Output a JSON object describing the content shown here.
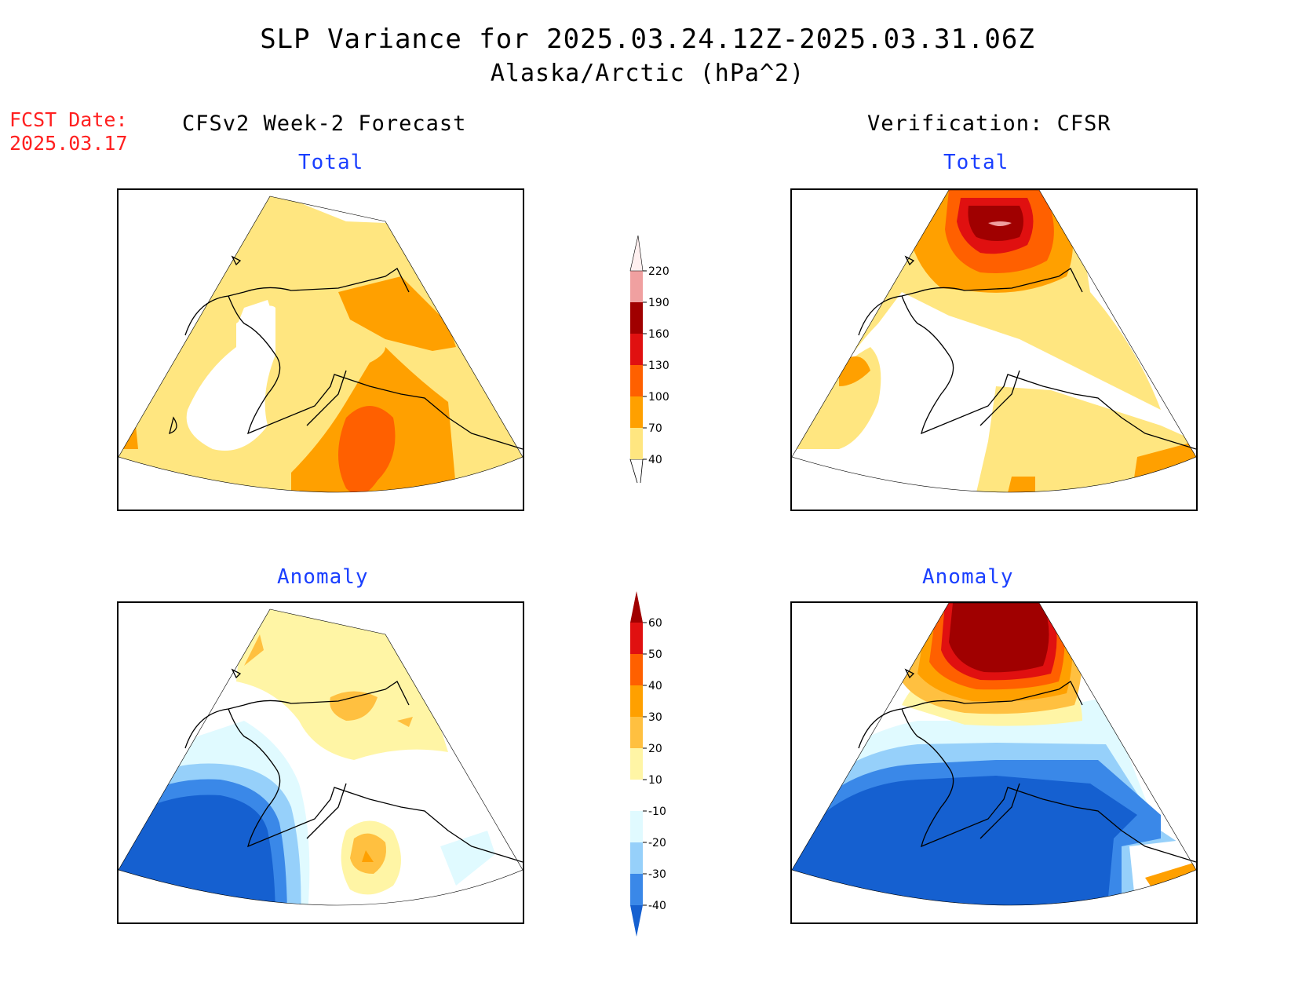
{
  "title": {
    "line1": "SLP Variance for 2025.03.24.12Z-2025.03.31.06Z",
    "line2": "Alaska/Arctic (hPa^2)"
  },
  "forecast_date": {
    "label": "FCST Date:",
    "value": "2025.03.17",
    "color": "#ff2020"
  },
  "columns": {
    "left": "CFSv2 Week-2 Forecast",
    "right": "Verification: CFSR"
  },
  "panels": {
    "fcst_total": {
      "subtitle": "Total"
    },
    "verif_total": {
      "subtitle": "Total"
    },
    "fcst_anom": {
      "subtitle": "Anomaly"
    },
    "verif_anom": {
      "subtitle": "Anomaly"
    }
  },
  "colorbars": {
    "total": {
      "ticks": [
        "40",
        "70",
        "100",
        "130",
        "160",
        "190",
        "220"
      ],
      "colors": [
        "#ffe680",
        "#ffa000",
        "#ff6000",
        "#e01010",
        "#a00000",
        "#f0a0a0",
        "#fff0f0"
      ],
      "below_color": "#ffffff"
    },
    "anomaly": {
      "ticks": [
        "-40",
        "-30",
        "-20",
        "-10",
        "10",
        "20",
        "30",
        "40",
        "50",
        "60"
      ],
      "colors": [
        "#1560d0",
        "#3a88e8",
        "#96d0fa",
        "#e0faff",
        "#ffffff",
        "#fff5a5",
        "#ffc040",
        "#ffa000",
        "#ff6000",
        "#e01010",
        "#a00000"
      ]
    }
  },
  "chart_data": {
    "type": "heatmap",
    "description_units": "hPa^2",
    "fields": [
      {
        "panel": "CFSv2 Week-2 Forecast - Total",
        "levels": [
          40,
          70,
          100,
          130,
          160,
          190,
          220
        ]
      },
      {
        "panel": "Verification: CFSR - Total",
        "levels": [
          40,
          70,
          100,
          130,
          160,
          190,
          220
        ]
      },
      {
        "panel": "CFSv2 Week-2 Forecast - Anomaly",
        "levels": [
          -40,
          -30,
          -20,
          -10,
          10,
          20,
          30,
          40,
          50,
          60
        ]
      },
      {
        "panel": "Verification: CFSR - Anomaly",
        "levels": [
          -40,
          -30,
          -20,
          -10,
          10,
          20,
          30,
          40,
          50,
          60
        ]
      }
    ]
  }
}
